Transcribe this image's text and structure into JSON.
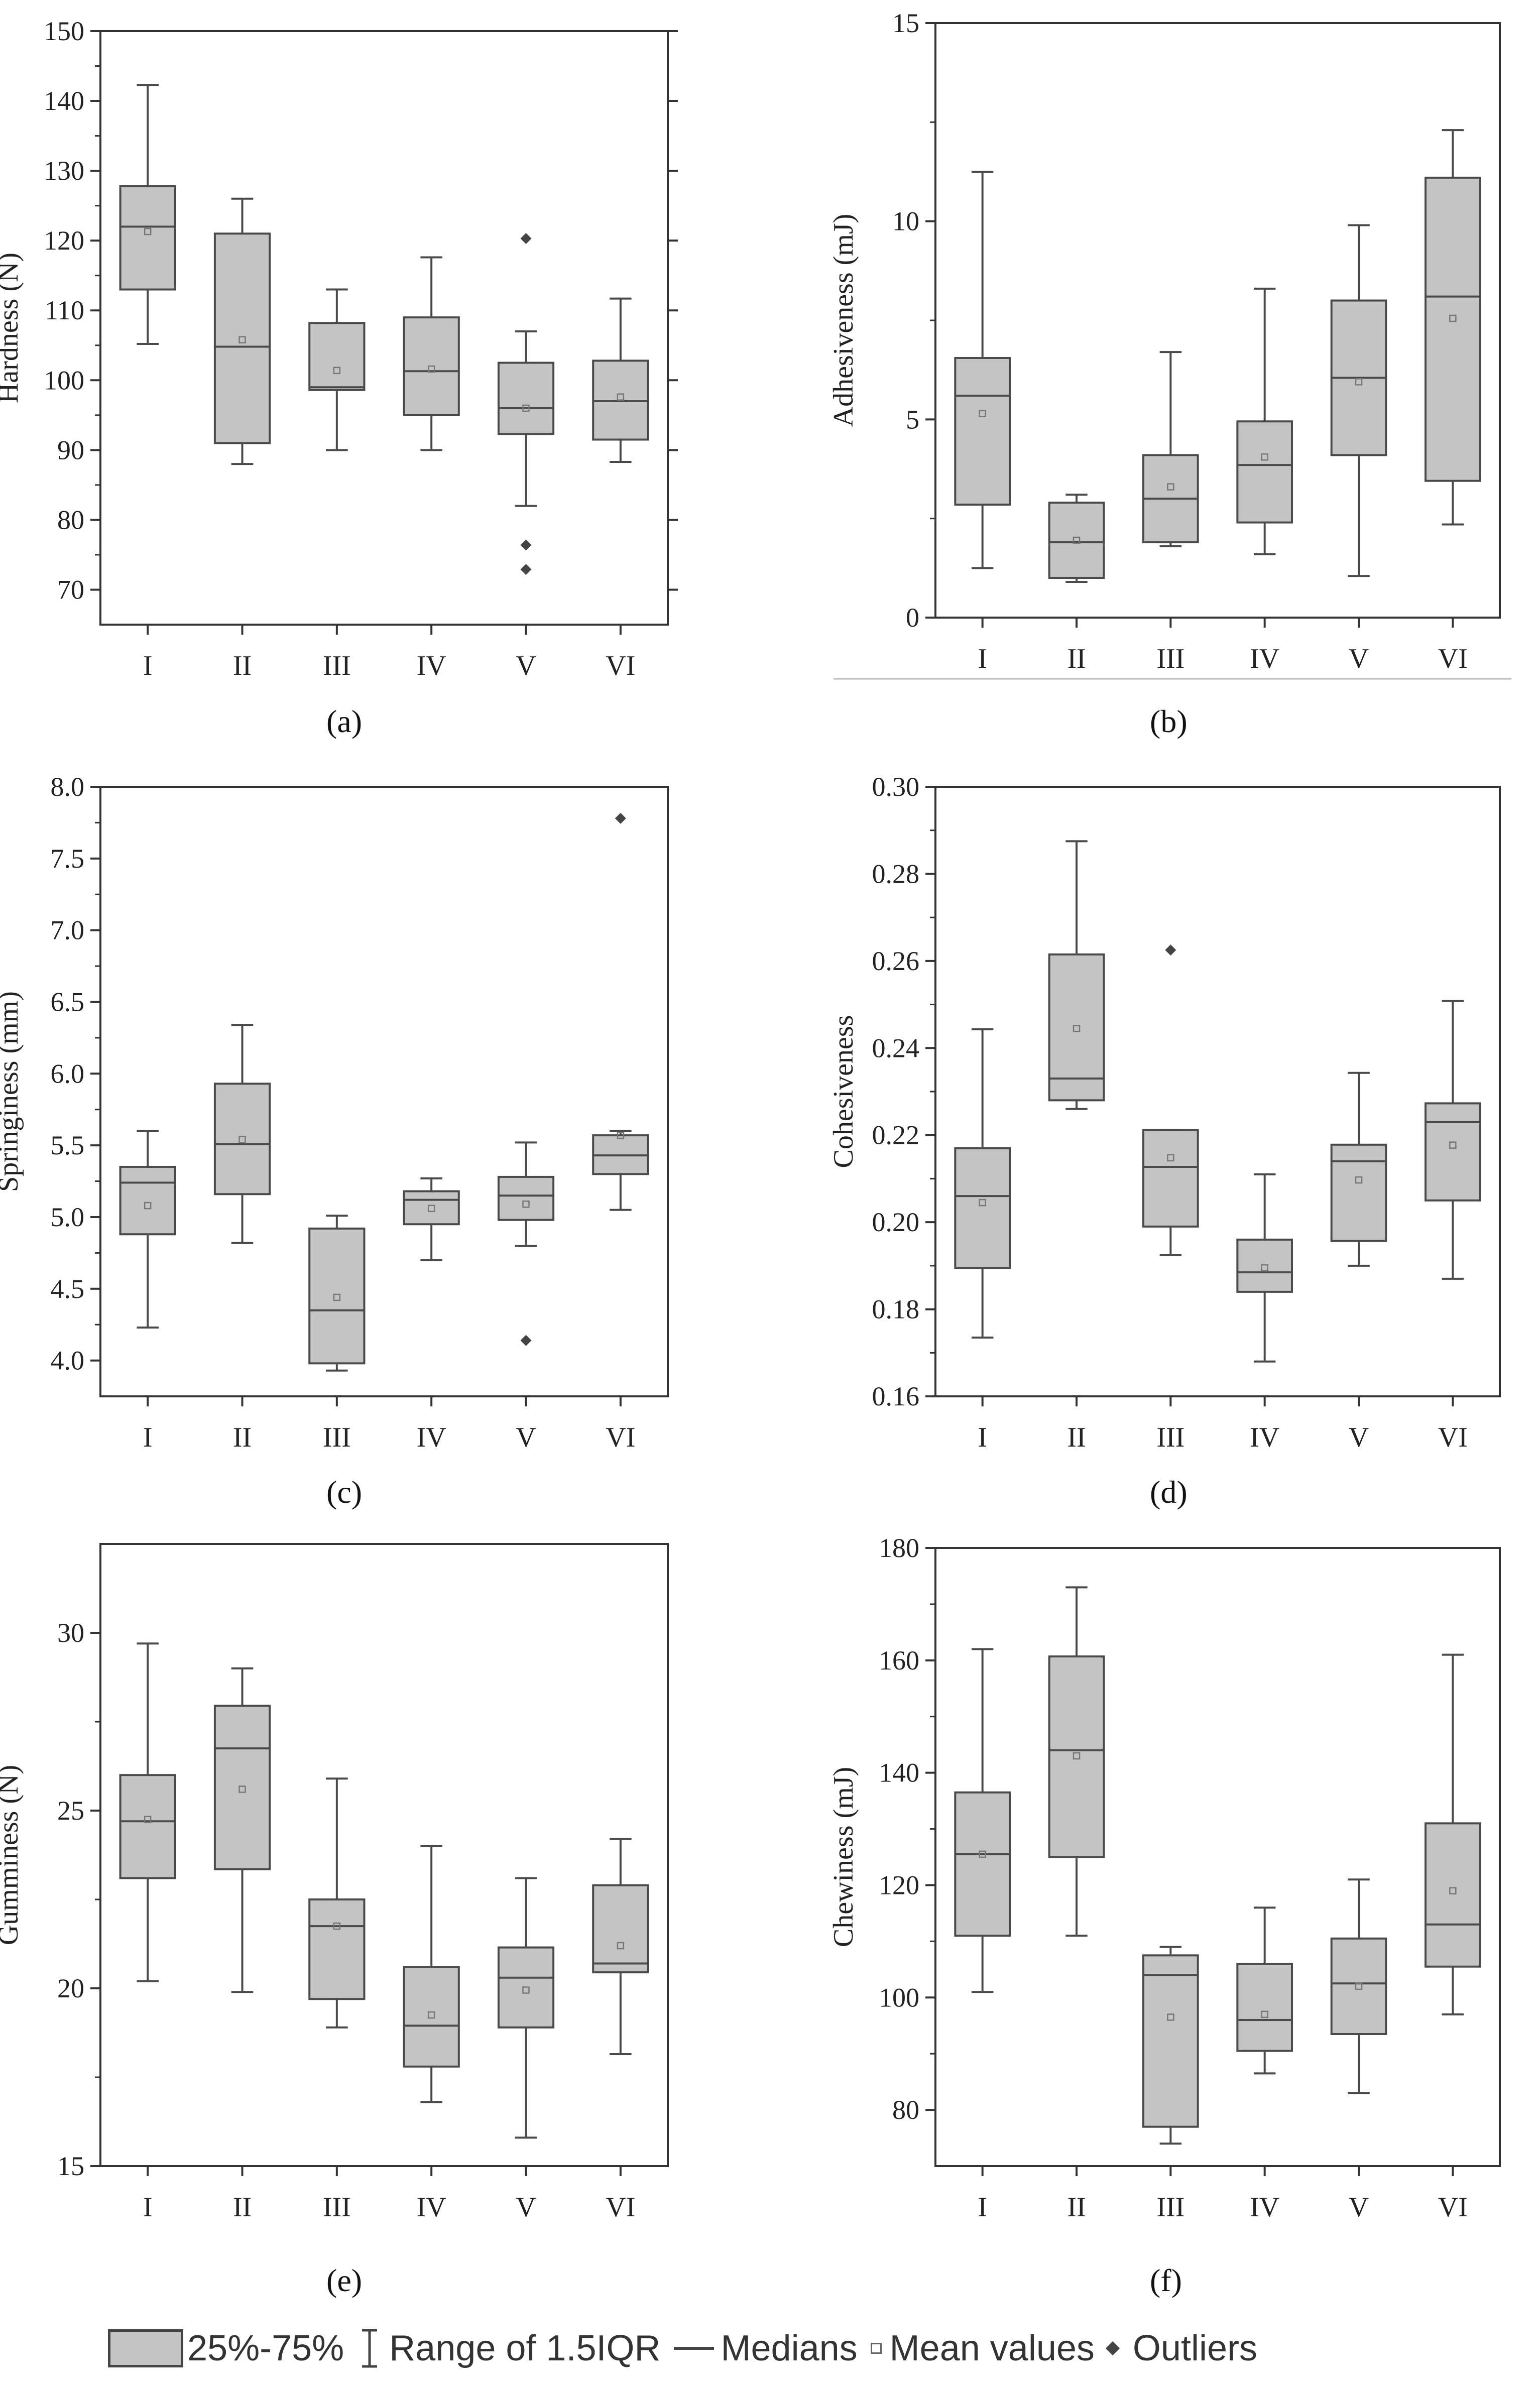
{
  "chart_data": [
    {
      "type": "box",
      "panel": "(a)",
      "ylabel": "Hardness (N)",
      "ylim": [
        65,
        150
      ],
      "yticks": [
        70,
        80,
        90,
        100,
        110,
        120,
        130,
        140,
        150
      ],
      "tick_side": "both",
      "categories": [
        "I",
        "II",
        "III",
        "IV",
        "V",
        "VI"
      ],
      "boxes": [
        {
          "whisker_low": 105.2,
          "q1": 113,
          "median": 122,
          "q3": 127.8,
          "whisker_high": 142.3,
          "mean": 121.3,
          "outliers": []
        },
        {
          "whisker_low": 88,
          "q1": 91,
          "median": 104.8,
          "q3": 121,
          "whisker_high": 126,
          "mean": 105.8,
          "outliers": []
        },
        {
          "whisker_low": 90,
          "q1": 98.6,
          "median": 99,
          "q3": 108.2,
          "whisker_high": 113,
          "mean": 101.4,
          "outliers": []
        },
        {
          "whisker_low": 90,
          "q1": 95,
          "median": 101.3,
          "q3": 109,
          "whisker_high": 117.6,
          "mean": 101.6,
          "outliers": []
        },
        {
          "whisker_low": 82,
          "q1": 92.3,
          "median": 96,
          "q3": 102.5,
          "whisker_high": 107,
          "mean": 96,
          "outliers": [
            120.3,
            76.4,
            72.9
          ]
        },
        {
          "whisker_low": 88.3,
          "q1": 91.5,
          "median": 97,
          "q3": 102.8,
          "whisker_high": 111.7,
          "mean": 97.6,
          "outliers": []
        }
      ]
    },
    {
      "type": "box",
      "panel": "(b)",
      "ylabel": "Adhesiveness (mJ)",
      "ylim": [
        0,
        15
      ],
      "yticks": [
        0,
        5,
        10,
        15
      ],
      "tick_side": "left",
      "categories": [
        "I",
        "II",
        "III",
        "IV",
        "V",
        "VI"
      ],
      "boxes": [
        {
          "whisker_low": 1.25,
          "q1": 2.85,
          "median": 5.6,
          "q3": 6.55,
          "whisker_high": 11.25,
          "mean": 5.15,
          "outliers": []
        },
        {
          "whisker_low": 0.9,
          "q1": 1.0,
          "median": 1.9,
          "q3": 2.9,
          "whisker_high": 3.1,
          "mean": 1.95,
          "outliers": []
        },
        {
          "whisker_low": 1.8,
          "q1": 1.9,
          "median": 3.0,
          "q3": 4.1,
          "whisker_high": 6.7,
          "mean": 3.3,
          "outliers": []
        },
        {
          "whisker_low": 1.6,
          "q1": 2.4,
          "median": 3.85,
          "q3": 4.95,
          "whisker_high": 8.3,
          "mean": 4.05,
          "outliers": []
        },
        {
          "whisker_low": 1.05,
          "q1": 4.1,
          "median": 6.05,
          "q3": 8.0,
          "whisker_high": 9.9,
          "mean": 5.95,
          "outliers": []
        },
        {
          "whisker_low": 2.35,
          "q1": 3.45,
          "median": 8.1,
          "q3": 11.1,
          "whisker_high": 12.3,
          "mean": 7.55,
          "outliers": []
        }
      ]
    },
    {
      "type": "box",
      "panel": "(c)",
      "ylabel": "Springiness (mm)",
      "ylim": [
        3.75,
        8.0
      ],
      "yticks": [
        4.0,
        4.5,
        5.0,
        5.5,
        6.0,
        6.5,
        7.0,
        7.5,
        8.0
      ],
      "tick_side": "left",
      "categories": [
        "I",
        "II",
        "III",
        "IV",
        "V",
        "VI"
      ],
      "boxes": [
        {
          "whisker_low": 4.23,
          "q1": 4.88,
          "median": 5.24,
          "q3": 5.35,
          "whisker_high": 5.6,
          "mean": 5.08,
          "outliers": []
        },
        {
          "whisker_low": 4.82,
          "q1": 5.16,
          "median": 5.51,
          "q3": 5.93,
          "whisker_high": 6.34,
          "mean": 5.54,
          "outliers": []
        },
        {
          "whisker_low": 3.93,
          "q1": 3.98,
          "median": 4.35,
          "q3": 4.92,
          "whisker_high": 5.01,
          "mean": 4.44,
          "outliers": []
        },
        {
          "whisker_low": 4.7,
          "q1": 4.95,
          "median": 5.12,
          "q3": 5.18,
          "whisker_high": 5.27,
          "mean": 5.06,
          "outliers": []
        },
        {
          "whisker_low": 4.8,
          "q1": 4.98,
          "median": 5.15,
          "q3": 5.28,
          "whisker_high": 5.52,
          "mean": 5.09,
          "outliers": [
            4.14
          ]
        },
        {
          "whisker_low": 5.05,
          "q1": 5.3,
          "median": 5.43,
          "q3": 5.57,
          "whisker_high": 5.6,
          "mean": 5.57,
          "outliers": [
            7.78
          ]
        }
      ]
    },
    {
      "type": "box",
      "panel": "(d)",
      "ylabel": "Cohesiveness",
      "ylim": [
        0.16,
        0.3
      ],
      "yticks": [
        0.16,
        0.18,
        0.2,
        0.22,
        0.24,
        0.26,
        0.28,
        0.3
      ],
      "tick_side": "left",
      "categories": [
        "I",
        "II",
        "III",
        "IV",
        "V",
        "VI"
      ],
      "boxes": [
        {
          "whisker_low": 0.1735,
          "q1": 0.1895,
          "median": 0.206,
          "q3": 0.217,
          "whisker_high": 0.2443,
          "mean": 0.2045,
          "outliers": []
        },
        {
          "whisker_low": 0.226,
          "q1": 0.228,
          "median": 0.233,
          "q3": 0.2615,
          "whisker_high": 0.2875,
          "mean": 0.2445,
          "outliers": []
        },
        {
          "whisker_low": 0.1925,
          "q1": 0.199,
          "median": 0.2127,
          "q3": 0.2212,
          "whisker_high": 0.2212,
          "mean": 0.2148,
          "outliers": [
            0.2625
          ]
        },
        {
          "whisker_low": 0.168,
          "q1": 0.184,
          "median": 0.1885,
          "q3": 0.196,
          "whisker_high": 0.211,
          "mean": 0.1895,
          "outliers": []
        },
        {
          "whisker_low": 0.19,
          "q1": 0.1957,
          "median": 0.214,
          "q3": 0.2178,
          "whisker_high": 0.2343,
          "mean": 0.2097,
          "outliers": []
        },
        {
          "whisker_low": 0.187,
          "q1": 0.205,
          "median": 0.223,
          "q3": 0.2273,
          "whisker_high": 0.2508,
          "mean": 0.2177,
          "outliers": []
        }
      ]
    },
    {
      "type": "box",
      "panel": "(e)",
      "ylabel": "Gumminess (N)",
      "ylim": [
        15,
        32.5
      ],
      "yticks": [
        15,
        20,
        25,
        30
      ],
      "tick_side": "left",
      "categories": [
        "I",
        "II",
        "III",
        "IV",
        "V",
        "VI"
      ],
      "boxes": [
        {
          "whisker_low": 20.2,
          "q1": 23.1,
          "median": 24.7,
          "q3": 26.0,
          "whisker_high": 29.7,
          "mean": 24.75,
          "outliers": []
        },
        {
          "whisker_low": 19.9,
          "q1": 23.35,
          "median": 26.75,
          "q3": 27.95,
          "whisker_high": 29.0,
          "mean": 25.6,
          "outliers": []
        },
        {
          "whisker_low": 18.9,
          "q1": 19.7,
          "median": 21.75,
          "q3": 22.5,
          "whisker_high": 25.9,
          "mean": 21.75,
          "outliers": []
        },
        {
          "whisker_low": 16.8,
          "q1": 17.8,
          "median": 18.95,
          "q3": 20.6,
          "whisker_high": 24.0,
          "mean": 19.25,
          "outliers": []
        },
        {
          "whisker_low": 15.8,
          "q1": 18.9,
          "median": 20.3,
          "q3": 21.15,
          "whisker_high": 23.1,
          "mean": 19.95,
          "outliers": []
        },
        {
          "whisker_low": 18.15,
          "q1": 20.45,
          "median": 20.7,
          "q3": 22.9,
          "whisker_high": 24.2,
          "mean": 21.2,
          "outliers": []
        }
      ]
    },
    {
      "type": "box",
      "panel": "(f)",
      "ylabel": "Chewiness (mJ)",
      "ylim": [
        70,
        180
      ],
      "yticks": [
        80,
        100,
        120,
        140,
        160,
        180
      ],
      "tick_side": "left",
      "categories": [
        "I",
        "II",
        "III",
        "IV",
        "V",
        "VI"
      ],
      "boxes": [
        {
          "whisker_low": 101,
          "q1": 111,
          "median": 125.5,
          "q3": 136.5,
          "whisker_high": 162,
          "mean": 125.5,
          "outliers": []
        },
        {
          "whisker_low": 111,
          "q1": 125,
          "median": 144,
          "q3": 160.7,
          "whisker_high": 173,
          "mean": 143,
          "outliers": []
        },
        {
          "whisker_low": 74,
          "q1": 77,
          "median": 104,
          "q3": 107.5,
          "whisker_high": 109,
          "mean": 96.5,
          "outliers": []
        },
        {
          "whisker_low": 86.5,
          "q1": 90.5,
          "median": 96,
          "q3": 106,
          "whisker_high": 116,
          "mean": 97,
          "outliers": []
        },
        {
          "whisker_low": 83,
          "q1": 93.5,
          "median": 102.5,
          "q3": 110.5,
          "whisker_high": 121,
          "mean": 102,
          "outliers": []
        },
        {
          "whisker_low": 97,
          "q1": 105.5,
          "median": 113,
          "q3": 131,
          "whisker_high": 161,
          "mean": 119,
          "outliers": []
        }
      ]
    }
  ],
  "legend": {
    "box_label": "25%-75%",
    "range_label": "Range of 1.5IQR",
    "median_label": "Medians",
    "mean_label": "Mean values",
    "outlier_label": "Outliers"
  },
  "colors": {
    "box_fill": "#c4c4c4",
    "stroke": "#4a4a4a",
    "mean_marker": "#777777",
    "outlier": "#444444"
  }
}
